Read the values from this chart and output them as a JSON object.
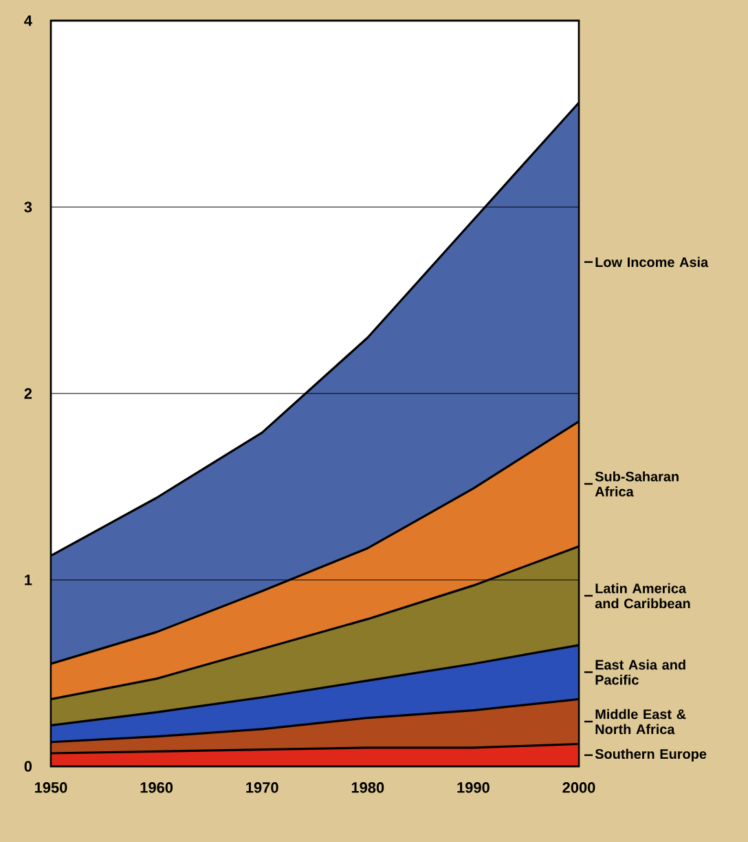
{
  "chart_data": {
    "type": "area",
    "stacked": true,
    "x": [
      1950,
      1960,
      1970,
      1980,
      1990,
      2000
    ],
    "xlim": [
      1950,
      2000
    ],
    "xticks": [
      1950,
      1960,
      1970,
      1980,
      1990,
      2000
    ],
    "ylim": [
      0,
      4
    ],
    "yticks": [
      0,
      1,
      2,
      3,
      4
    ],
    "grid": "y",
    "legend": "right",
    "series": [
      {
        "name": "Southern Europe",
        "color": "#e0281a",
        "values": [
          0.07,
          0.08,
          0.09,
          0.1,
          0.1,
          0.12
        ]
      },
      {
        "name": "Middle East & North Africa",
        "color": "#b04a1c",
        "values": [
          0.06,
          0.08,
          0.11,
          0.16,
          0.2,
          0.24
        ]
      },
      {
        "name": "East Asia and Pacific",
        "color": "#2a4fb8",
        "values": [
          0.09,
          0.13,
          0.17,
          0.2,
          0.25,
          0.29
        ]
      },
      {
        "name": "Latin America and Caribbean",
        "color": "#8a7a2a",
        "values": [
          0.14,
          0.18,
          0.26,
          0.33,
          0.42,
          0.53
        ]
      },
      {
        "name": "Sub-Saharan Africa",
        "color": "#e07a2a",
        "values": [
          0.19,
          0.25,
          0.31,
          0.38,
          0.52,
          0.67
        ]
      },
      {
        "name": "Low Income Asia",
        "color": "#4a64a8",
        "values": [
          0.58,
          0.72,
          0.85,
          1.13,
          1.44,
          1.71
        ]
      }
    ]
  }
}
